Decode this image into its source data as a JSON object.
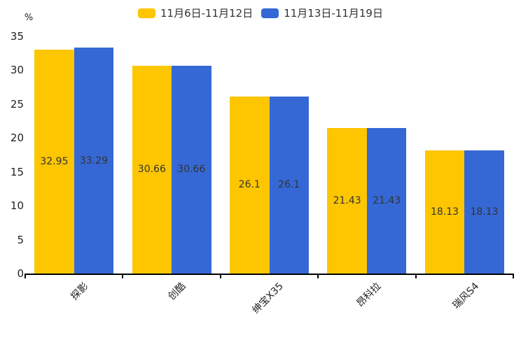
{
  "chart_data": {
    "type": "bar",
    "categories": [
      "探影",
      "创酷",
      "绅宝X35",
      "昂科拉",
      "瑞风S4"
    ],
    "series": [
      {
        "name": "11月6日-11月12日",
        "color": "#FDC600",
        "values": [
          32.95,
          30.66,
          26.1,
          21.43,
          18.13
        ]
      },
      {
        "name": "11月13日-11月19日",
        "color": "#3568D4",
        "values": [
          33.29,
          30.66,
          26.1,
          21.43,
          18.13
        ]
      }
    ],
    "title": "",
    "xlabel": "",
    "ylabel": "%",
    "ylim": [
      0,
      35
    ],
    "yticks": [
      0,
      5,
      10,
      15,
      20,
      25,
      30,
      35
    ],
    "grid": false,
    "legend_position": "top",
    "value_labels": "inside-center"
  },
  "colors": {
    "series1": "#FDC600",
    "series2": "#3568D4",
    "value_label": "#333333",
    "tick_label": "#222222",
    "axis": "#000000",
    "background": "#FFFFFF"
  }
}
